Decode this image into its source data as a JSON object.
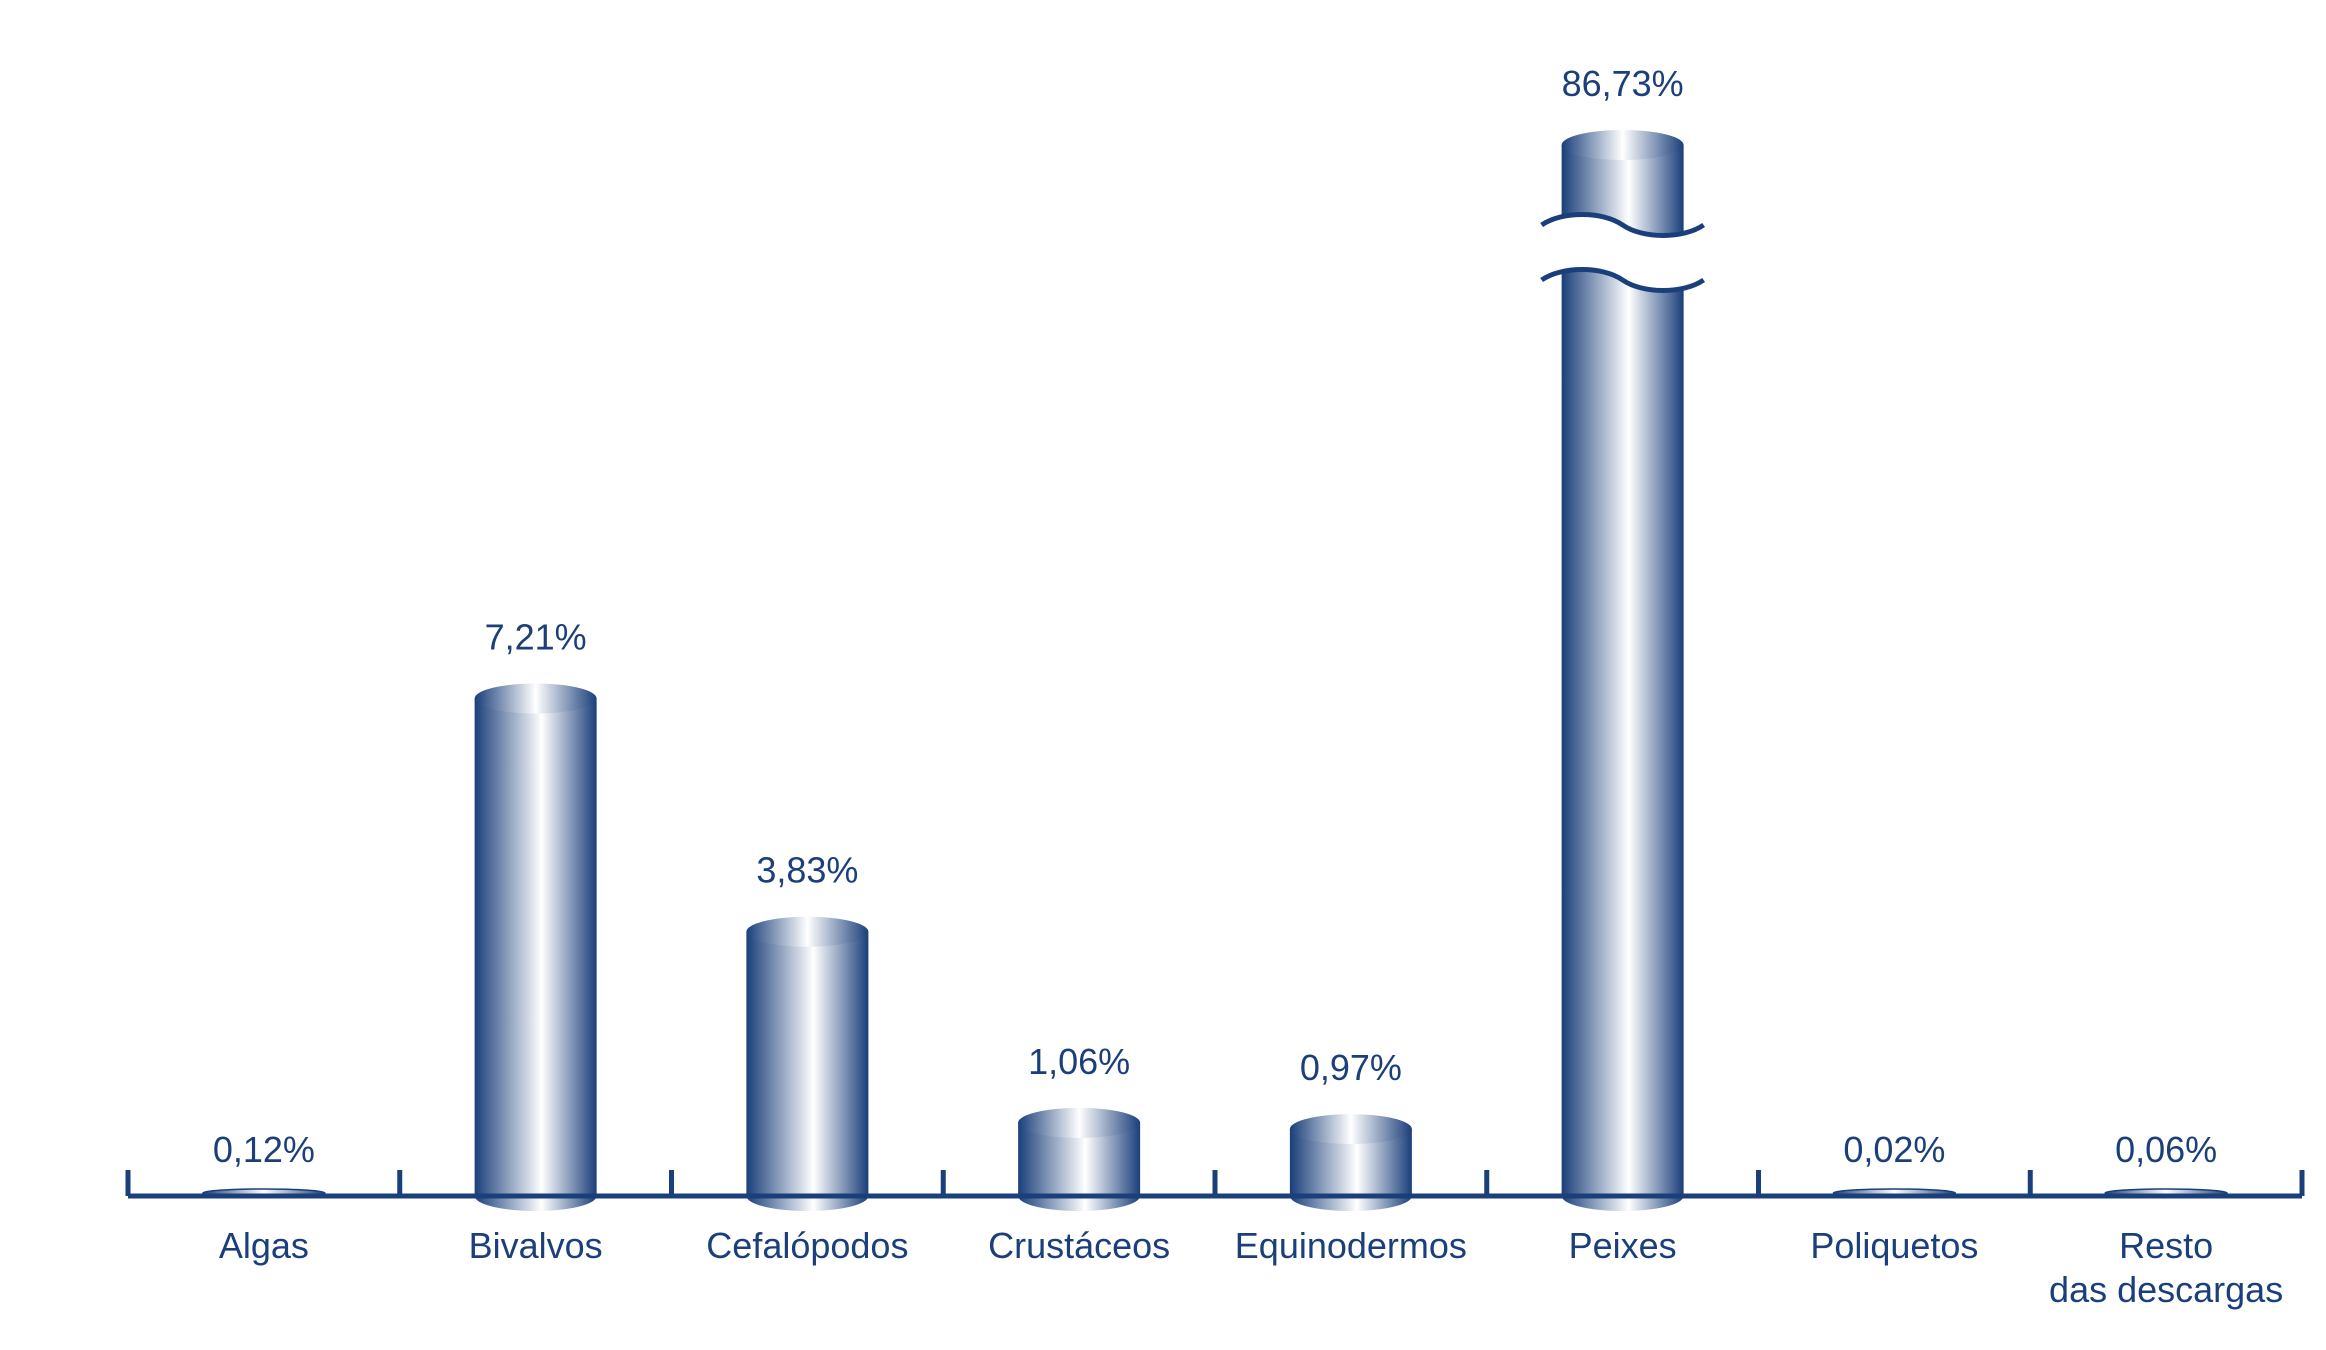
{
  "chart_data": {
    "type": "bar",
    "bar_style": "cylinder",
    "categories": [
      "Algas",
      "Bivalvos",
      "Cefalópodos",
      "Crustáceos",
      "Equinodermos",
      "Peixes",
      "Poliquetos",
      "Resto das descargas"
    ],
    "category_lines": [
      [
        "Algas"
      ],
      [
        "Bivalvos"
      ],
      [
        "Cefalópodos"
      ],
      [
        "Crustáceos"
      ],
      [
        "Equinodermos"
      ],
      [
        "Peixes"
      ],
      [
        "Poliquetos"
      ],
      [
        "Resto",
        "das descargas"
      ]
    ],
    "values": [
      0.12,
      7.21,
      3.83,
      1.06,
      0.97,
      86.73,
      0.02,
      0.06
    ],
    "data_labels": [
      "0,12%",
      "7,21%",
      "3,83%",
      "1,06%",
      "0,97%",
      "86,73%",
      "0,02%",
      "0,06%"
    ],
    "units": "%",
    "title": "",
    "xlabel": "",
    "ylabel": "",
    "ylim": [
      0,
      10
    ],
    "axis_break": {
      "category": "Peixes"
    },
    "grid": false,
    "legend": "none",
    "colors": {
      "bar_dark": "#1b3f7a",
      "bar_light": "#ffffff",
      "axis": "#1b3f7a",
      "text": "#1b3f7a"
    }
  }
}
